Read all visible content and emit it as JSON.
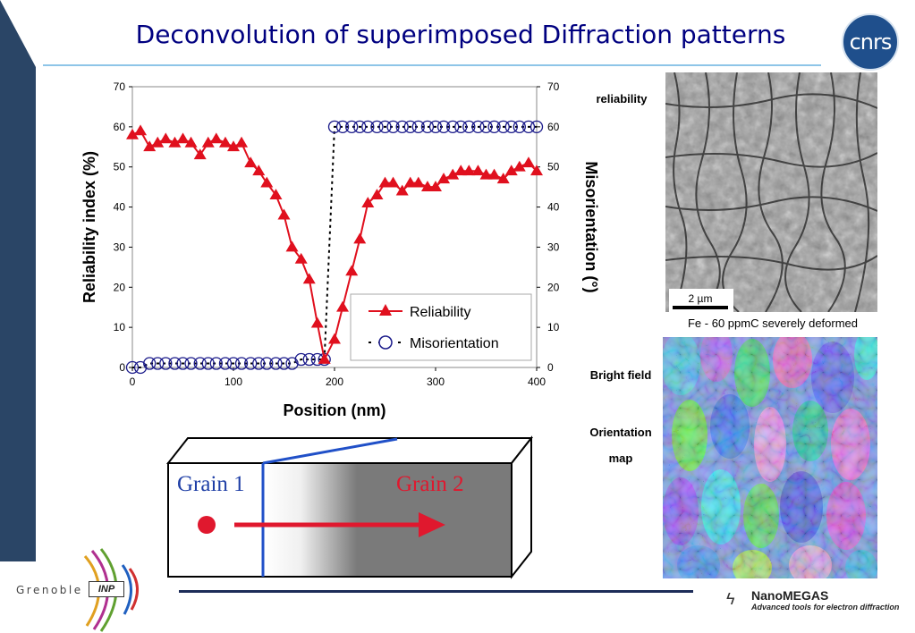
{
  "slide": {
    "title": "Deconvolution of superimposed Diffraction patterns"
  },
  "logos": {
    "cnrs": "cnrs",
    "grenoble": "Grenoble",
    "inp": "INP",
    "nanomegas_name": "NanoMEGAS",
    "nanomegas_tagline": "Advanced tools for electron diffraction"
  },
  "images": {
    "reliability_label": "reliability",
    "scale_bar": "2 µm",
    "caption": "Fe - 60 ppmC severely deformed",
    "bright_field_label": "Bright field",
    "orientation_label_1": "Orientation",
    "orientation_label_2": "map"
  },
  "diagram": {
    "grain1": "Grain 1",
    "grain2": "Grain 2",
    "colors": {
      "grain1": "#1f3fa6",
      "grain2": "#e0182e",
      "arrow": "#e0182e"
    }
  },
  "chart_data": {
    "type": "line",
    "xlabel": "Position (nm)",
    "ylabel": "Reliability index (%)",
    "y2label": "Misorientation (°)",
    "xlim": [
      0,
      400
    ],
    "ylim": [
      0,
      70
    ],
    "y2lim": [
      0,
      70
    ],
    "xticks": [
      "0",
      "100",
      "200",
      "300",
      "400"
    ],
    "yticks": [
      "0",
      "10",
      "20",
      "30",
      "40",
      "50",
      "60",
      "70"
    ],
    "y2ticks": [
      "0",
      "10",
      "20",
      "30",
      "40",
      "50",
      "60",
      "70"
    ],
    "grid": false,
    "legend": "bottom-right",
    "series": [
      {
        "name": "Reliability",
        "axis": "left",
        "color": "#e0101e",
        "marker": "triangle",
        "x": [
          0,
          8,
          17,
          25,
          33,
          42,
          50,
          58,
          67,
          75,
          83,
          92,
          100,
          108,
          117,
          125,
          133,
          142,
          150,
          158,
          167,
          175,
          183,
          190,
          200,
          208,
          217,
          225,
          233,
          242,
          250,
          258,
          267,
          275,
          283,
          292,
          300,
          308,
          317,
          325,
          333,
          342,
          350,
          358,
          367,
          375,
          383,
          392,
          400
        ],
        "y": [
          58,
          59,
          55,
          56,
          57,
          56,
          57,
          56,
          53,
          56,
          57,
          56,
          55,
          56,
          51,
          49,
          46,
          43,
          38,
          30,
          27,
          22,
          11,
          2,
          7,
          15,
          24,
          32,
          41,
          43,
          46,
          46,
          44,
          46,
          46,
          45,
          45,
          47,
          48,
          49,
          49,
          49,
          48,
          48,
          47,
          49,
          50,
          51,
          49
        ]
      },
      {
        "name": "Misorientation",
        "axis": "right",
        "color": "#1a1a8a",
        "marker": "circle",
        "x": [
          0,
          8,
          17,
          25,
          33,
          42,
          50,
          58,
          67,
          75,
          83,
          92,
          100,
          108,
          117,
          125,
          133,
          142,
          150,
          158,
          167,
          175,
          183,
          190,
          200,
          208,
          217,
          225,
          233,
          242,
          250,
          258,
          267,
          275,
          283,
          292,
          300,
          308,
          317,
          325,
          333,
          342,
          350,
          358,
          367,
          375,
          383,
          392,
          400
        ],
        "y": [
          0,
          0,
          1,
          1,
          1,
          1,
          1,
          1,
          1,
          1,
          1,
          1,
          1,
          1,
          1,
          1,
          1,
          1,
          1,
          1,
          2,
          2,
          2,
          2,
          60,
          60,
          60,
          60,
          60,
          60,
          60,
          60,
          60,
          60,
          60,
          60,
          60,
          60,
          60,
          60,
          60,
          60,
          60,
          60,
          60,
          60,
          60,
          60,
          60
        ]
      }
    ]
  }
}
